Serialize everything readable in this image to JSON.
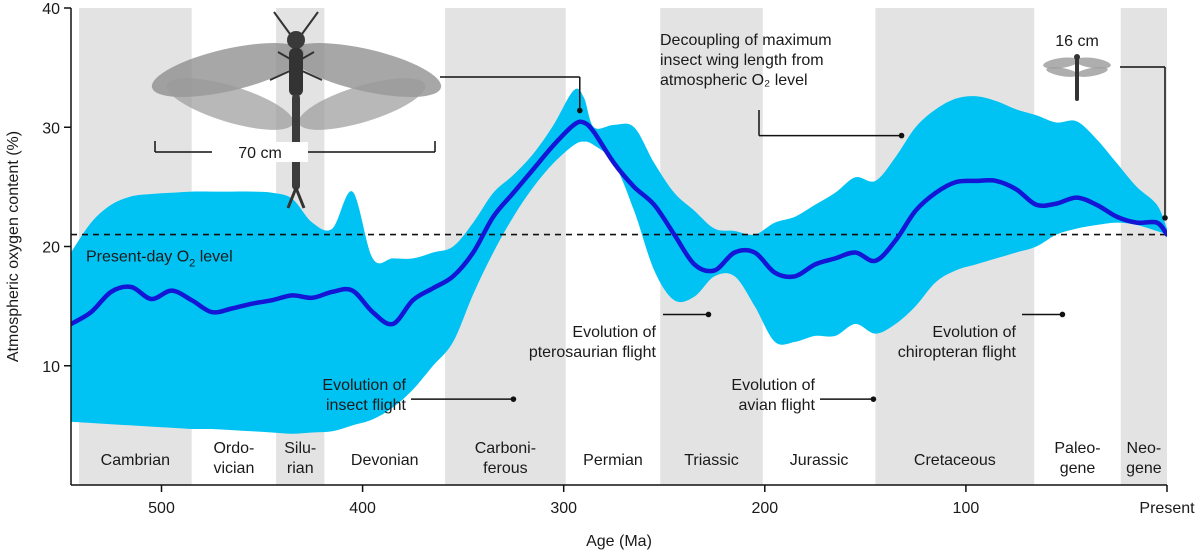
{
  "chart_data": {
    "type": "area",
    "xlabel": "Age (Ma)",
    "ylabel": "Atmospheric oxygen content (%)",
    "xlim": [
      545,
      0
    ],
    "ylim": [
      0,
      40
    ],
    "x_ticks": [
      {
        "value": 500,
        "label": "500"
      },
      {
        "value": 400,
        "label": "400"
      },
      {
        "value": 300,
        "label": "300"
      },
      {
        "value": 200,
        "label": "200"
      },
      {
        "value": 100,
        "label": "100"
      },
      {
        "value": 0,
        "label": "Present"
      }
    ],
    "y_ticks": [
      10,
      20,
      30,
      40
    ],
    "reference_line": {
      "y": 21,
      "label": "Present-day O",
      "label_sub": "2",
      "label_suffix": " level",
      "style": "dashed"
    },
    "periods": [
      {
        "name": [
          "Cambrian"
        ],
        "start": 541,
        "end": 485,
        "shaded": true
      },
      {
        "name": [
          "Ordo-",
          "vician"
        ],
        "start": 485,
        "end": 443,
        "shaded": false
      },
      {
        "name": [
          "Silu-",
          "rian"
        ],
        "start": 443,
        "end": 419,
        "shaded": true
      },
      {
        "name": [
          "Devonian"
        ],
        "start": 419,
        "end": 359,
        "shaded": false
      },
      {
        "name": [
          "Carboni-",
          "ferous"
        ],
        "start": 359,
        "end": 299,
        "shaded": true
      },
      {
        "name": [
          "Permian"
        ],
        "start": 299,
        "end": 252,
        "shaded": false
      },
      {
        "name": [
          "Triassic"
        ],
        "start": 252,
        "end": 201,
        "shaded": true
      },
      {
        "name": [
          "Jurassic"
        ],
        "start": 201,
        "end": 145,
        "shaded": false
      },
      {
        "name": [
          "Cretaceous"
        ],
        "start": 145,
        "end": 66,
        "shaded": true
      },
      {
        "name": [
          "Paleo-",
          "gene"
        ],
        "start": 66,
        "end": 23,
        "shaded": false
      },
      {
        "name": [
          "Neo-",
          "gene"
        ],
        "start": 23,
        "end": 0,
        "shaded": true
      }
    ],
    "series": [
      {
        "kind": "mean-line",
        "color": "#1515d6",
        "x": [
          545,
          535,
          525,
          515,
          505,
          495,
          485,
          475,
          465,
          455,
          445,
          435,
          425,
          415,
          405,
          395,
          385,
          375,
          365,
          355,
          345,
          335,
          325,
          315,
          305,
          295,
          290,
          285,
          275,
          265,
          255,
          245,
          235,
          225,
          215,
          205,
          195,
          185,
          175,
          165,
          155,
          145,
          135,
          125,
          115,
          105,
          95,
          85,
          75,
          65,
          55,
          45,
          35,
          25,
          15,
          5,
          0
        ],
        "y": [
          13.5,
          14.5,
          16.2,
          16.6,
          15.6,
          16.3,
          15.5,
          14.5,
          14.8,
          15.2,
          15.5,
          15.9,
          15.7,
          16.2,
          16.3,
          14.5,
          13.5,
          15.5,
          16.5,
          17.5,
          19.5,
          22.5,
          24.5,
          26.5,
          28.5,
          30.2,
          30.4,
          29.6,
          27,
          25,
          23.5,
          21,
          18.5,
          18,
          19.5,
          19.5,
          17.8,
          17.5,
          18.5,
          19,
          19.5,
          18.8,
          20.5,
          23,
          24.5,
          25.4,
          25.5,
          25.5,
          24.8,
          23.5,
          23.6,
          24.1,
          23.5,
          22.5,
          22,
          22,
          21
        ]
      },
      {
        "kind": "uncertainty-band",
        "color": "#00c2f3",
        "x": [
          545,
          535,
          525,
          515,
          505,
          495,
          485,
          475,
          465,
          455,
          445,
          435,
          425,
          415,
          405,
          395,
          385,
          375,
          365,
          355,
          345,
          335,
          325,
          315,
          305,
          295,
          290,
          285,
          275,
          265,
          255,
          245,
          235,
          225,
          215,
          205,
          195,
          185,
          175,
          165,
          155,
          145,
          135,
          125,
          115,
          105,
          95,
          85,
          75,
          65,
          55,
          45,
          35,
          25,
          15,
          5,
          0
        ],
        "upper": [
          19.5,
          22,
          23.5,
          24.2,
          24.4,
          24.5,
          24.6,
          24.6,
          24.6,
          24.6,
          24.5,
          24,
          22,
          21.5,
          24.6,
          19,
          19,
          19,
          19.5,
          20,
          22,
          24.5,
          26,
          27.8,
          30.2,
          33.1,
          32.5,
          30,
          30.2,
          30,
          27,
          24.5,
          23,
          21.5,
          21.3,
          21,
          22,
          22.5,
          23.5,
          24.5,
          25.8,
          25.5,
          27.5,
          30,
          31.5,
          32.4,
          32.6,
          32.2,
          31.5,
          31,
          30.4,
          30.5,
          29,
          27,
          25,
          23.5,
          21.5
        ],
        "lower": [
          5.3,
          5.2,
          5.1,
          5,
          4.9,
          4.8,
          4.7,
          4.7,
          4.6,
          4.5,
          4.4,
          4.3,
          4.4,
          4.5,
          5,
          5.5,
          6.5,
          8,
          10,
          12,
          16,
          19.5,
          22.5,
          25,
          27,
          28.5,
          28.8,
          28.5,
          27,
          23,
          18,
          15.5,
          15.8,
          17.5,
          17.5,
          15,
          12,
          12,
          12.5,
          12.5,
          13.5,
          12.7,
          13.5,
          15,
          17,
          18,
          18.5,
          19,
          19.5,
          20,
          21,
          21.5,
          21.8,
          22,
          21.8,
          21.3,
          21
        ]
      }
    ],
    "annotations": [
      {
        "text": [
          "Evolution of",
          "insect flight"
        ],
        "point": [
          325,
          7.2
        ]
      },
      {
        "text": [
          "Evolution of",
          "pterosaurian flight"
        ],
        "point": [
          228,
          14.3
        ]
      },
      {
        "text": [
          "Evolution of",
          "avian flight"
        ],
        "point": [
          146,
          7.2
        ]
      },
      {
        "text": [
          "Evolution of",
          "chiropteran flight"
        ],
        "point": [
          52,
          14.3
        ]
      },
      {
        "text": [
          "Decoupling of maximum",
          "insect wing length from",
          "atmospheric O₂ level"
        ],
        "point": [
          132,
          29.3
        ]
      }
    ],
    "wing_callouts": [
      {
        "size_label": "70 cm",
        "points_to": [
          292,
          31.4
        ]
      },
      {
        "size_label": "16 cm",
        "points_to": [
          1,
          22.4
        ]
      }
    ]
  }
}
